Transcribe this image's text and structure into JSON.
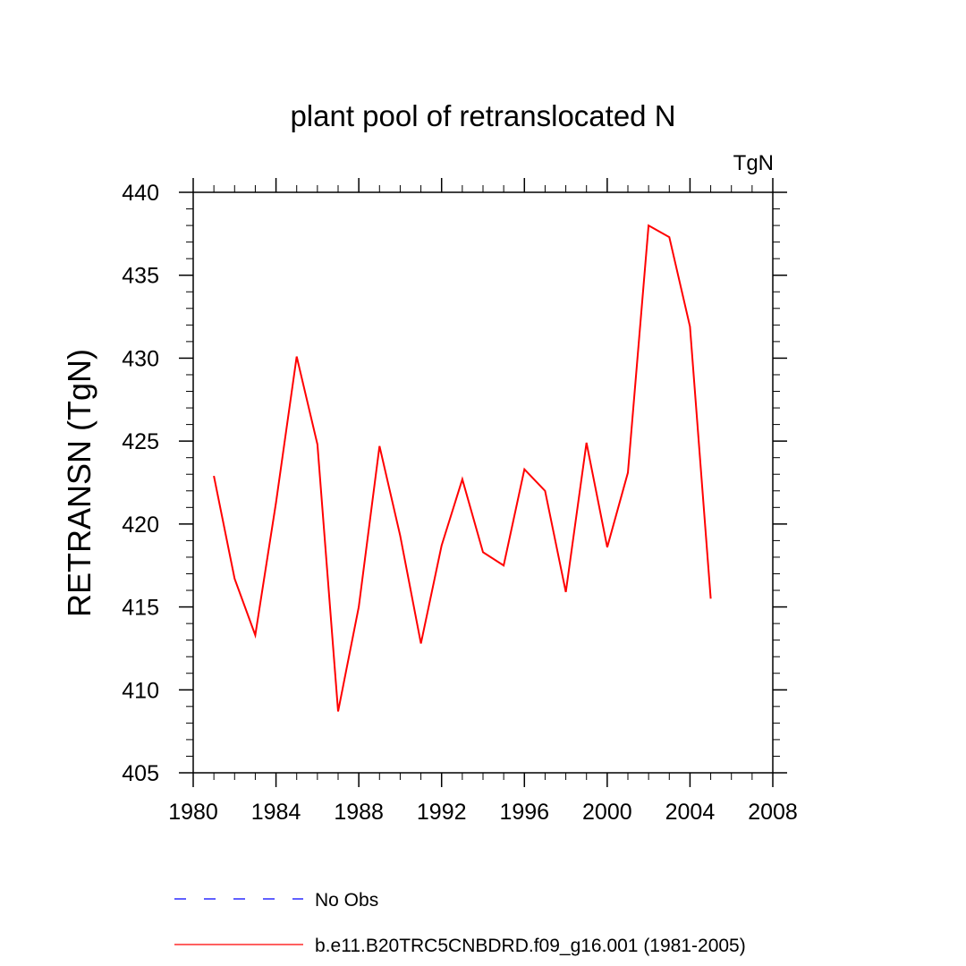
{
  "chart_data": {
    "type": "line",
    "title": "plant pool of retranslocated N",
    "units": "TgN",
    "ylabel": "RETRANSN  (TgN)",
    "xlabel": "",
    "xlim": [
      1980,
      2008
    ],
    "ylim": [
      405,
      440
    ],
    "xticks": [
      1980,
      1984,
      1988,
      1992,
      1996,
      2000,
      2004,
      2008
    ],
    "yticks": [
      405,
      410,
      415,
      420,
      425,
      430,
      435,
      440
    ],
    "grid": false,
    "series": [
      {
        "name": "b.e11.B20TRC5CNBDRD.f09_g16.001 (1981-2005)",
        "color": "#ff0000",
        "dash": "solid",
        "x": [
          1981,
          1982,
          1983,
          1984,
          1985,
          1986,
          1987,
          1988,
          1989,
          1990,
          1991,
          1992,
          1993,
          1994,
          1995,
          1996,
          1997,
          1998,
          1999,
          2000,
          2001,
          2002,
          2003,
          2004,
          2005
        ],
        "values": [
          422.9,
          416.7,
          413.3,
          421.3,
          430.1,
          424.8,
          408.7,
          415.0,
          424.7,
          419.3,
          412.8,
          418.7,
          422.7,
          418.3,
          417.5,
          423.3,
          422.0,
          415.9,
          424.9,
          418.6,
          423.1,
          438.0,
          437.3,
          431.9,
          415.5
        ]
      }
    ],
    "legend": {
      "placement": "bottom-left",
      "entries": [
        {
          "label": "No Obs",
          "color": "#0000ff",
          "dash": "dashed"
        },
        {
          "label": "b.e11.B20TRC5CNBDRD.f09_g16.001 (1981-2005)",
          "color": "#ff0000",
          "dash": "solid"
        }
      ]
    }
  }
}
